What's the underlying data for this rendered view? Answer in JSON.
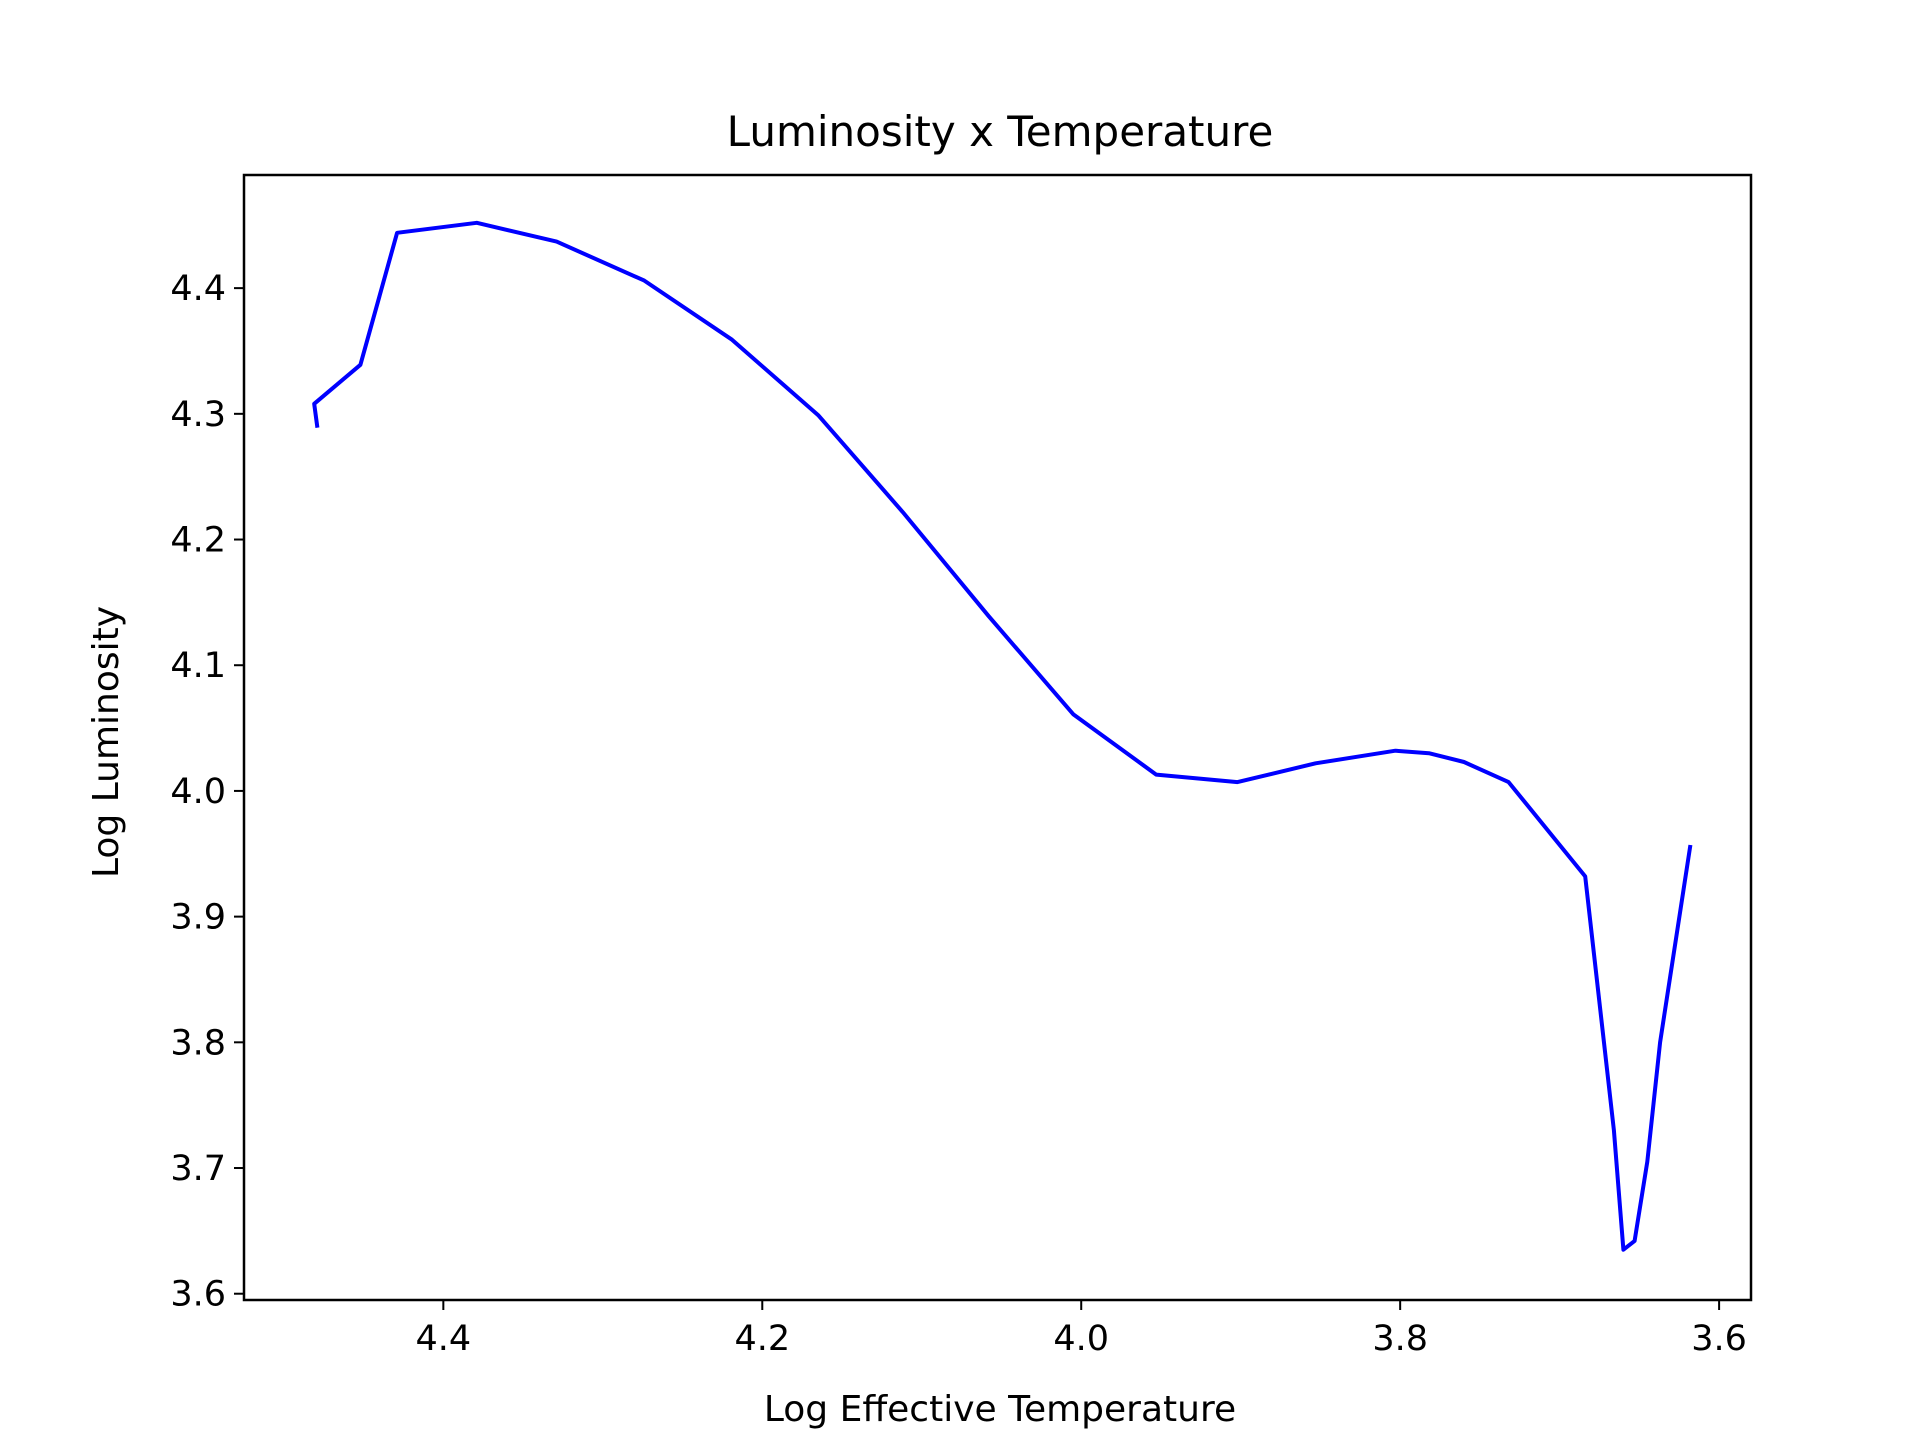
{
  "chart_data": {
    "type": "line",
    "title": "Luminosity x Temperature",
    "xlabel": "Log Effective Temperature",
    "ylabel": "Log Luminosity",
    "xlim": [
      4.525,
      3.58
    ],
    "ylim": [
      3.595,
      4.49
    ],
    "x_inverted": true,
    "grid": false,
    "legend": "none",
    "xticks": [
      4.4,
      4.2,
      4.0,
      3.8,
      3.6
    ],
    "xtick_labels": [
      "4.4",
      "4.2",
      "4.0",
      "3.8",
      "3.6"
    ],
    "yticks": [
      3.6,
      3.7,
      3.8,
      3.9,
      4.0,
      4.1,
      4.2,
      4.3,
      4.4
    ],
    "ytick_labels": [
      "3.6",
      "3.7",
      "3.8",
      "3.9",
      "4.0",
      "4.1",
      "4.2",
      "4.3",
      "4.4"
    ],
    "series": [
      {
        "color": "#0000ff",
        "x": [
          4.479,
          4.481,
          4.452,
          4.429,
          4.379,
          4.329,
          4.274,
          4.219,
          4.165,
          4.112,
          4.058,
          4.005,
          3.953,
          3.902,
          3.853,
          3.803,
          3.782,
          3.76,
          3.732,
          3.684,
          3.666,
          3.66,
          3.653,
          3.645,
          3.637,
          3.618
        ],
        "y": [
          4.289,
          4.308,
          4.339,
          4.444,
          4.452,
          4.437,
          4.406,
          4.359,
          4.299,
          4.222,
          4.139,
          4.061,
          4.013,
          4.007,
          4.022,
          4.032,
          4.03,
          4.023,
          4.007,
          3.932,
          3.73,
          3.635,
          3.642,
          3.705,
          3.8,
          3.957
        ]
      }
    ]
  }
}
